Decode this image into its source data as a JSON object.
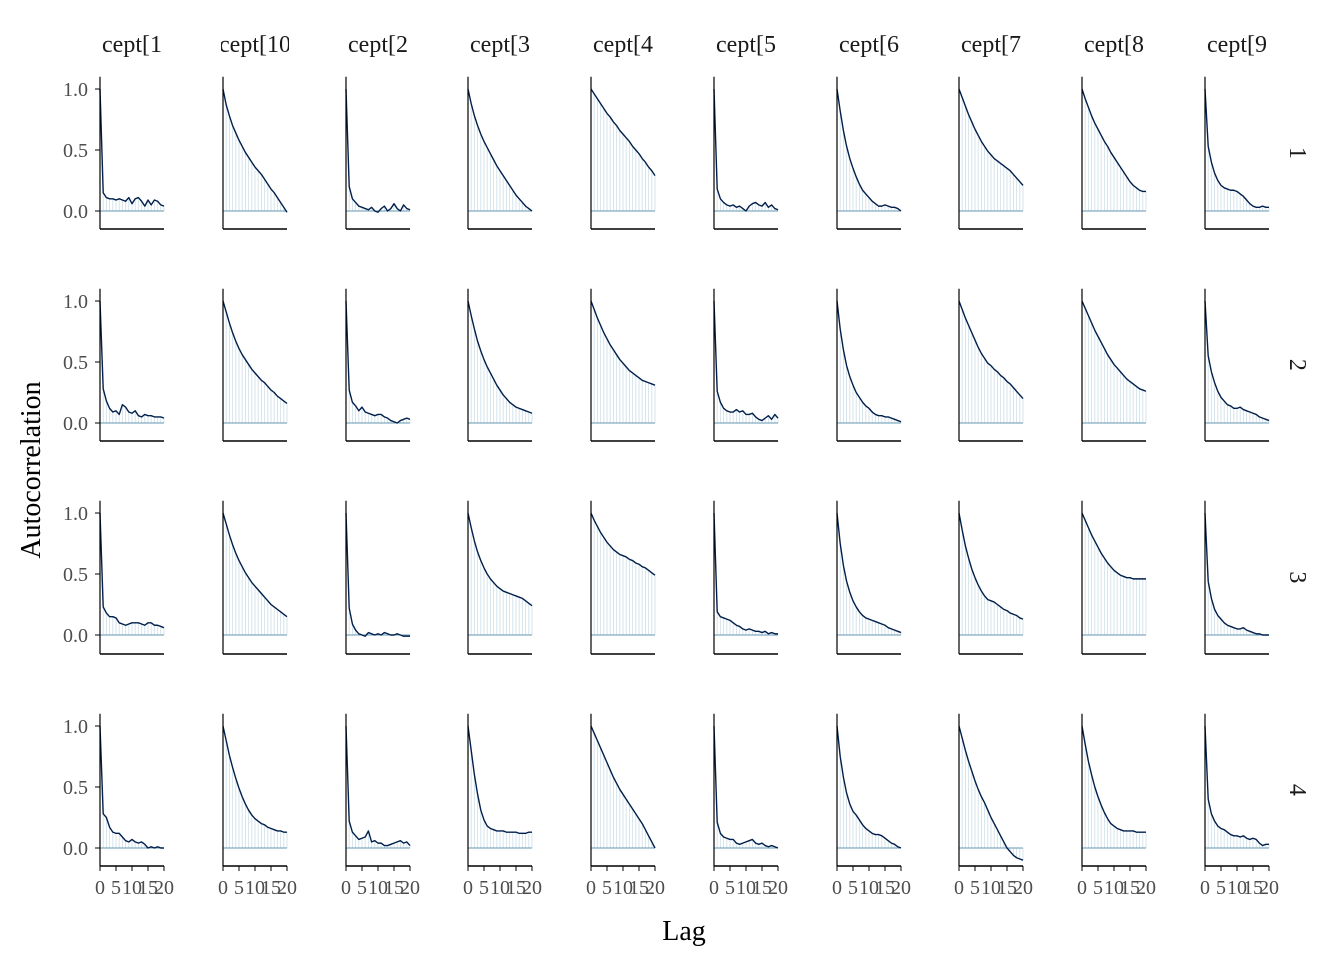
{
  "chart_data": {
    "type": "line",
    "xlabel": "Lag",
    "ylabel": "Autocorrelation",
    "xlim": [
      0,
      20
    ],
    "ylim": [
      -0.15,
      1.1
    ],
    "x_ticks": [
      0,
      5,
      10,
      15,
      20
    ],
    "x_tick_labels": [
      "0",
      "5",
      "10",
      "15",
      "20"
    ],
    "y_ticks": [
      0,
      0.5,
      1
    ],
    "y_tick_labels": [
      "0.0",
      "0.5",
      "1.0"
    ],
    "grid": false,
    "colors": {
      "line": "#011f4b",
      "bars": "#d1e1ec",
      "zero_line": "#6497b1",
      "axis": "#000000"
    },
    "columns": [
      "cept[1",
      "cept[10",
      "cept[2",
      "cept[3",
      "cept[4",
      "cept[5",
      "cept[6",
      "cept[7",
      "cept[8",
      "cept[9"
    ],
    "rows": [
      "1",
      "2",
      "3",
      "4"
    ],
    "x": [
      0,
      1,
      2,
      3,
      4,
      5,
      6,
      7,
      8,
      9,
      10,
      11,
      12,
      13,
      14,
      15,
      16,
      17,
      18,
      19,
      20
    ],
    "panels": [
      [
        [
          1.0,
          0.15,
          0.11,
          0.1,
          0.1,
          0.09,
          0.1,
          0.09,
          0.08,
          0.11,
          0.06,
          0.1,
          0.11,
          0.08,
          0.04,
          0.09,
          0.05,
          0.09,
          0.08,
          0.05,
          0.04
        ],
        [
          1.0,
          0.87,
          0.78,
          0.7,
          0.64,
          0.58,
          0.53,
          0.48,
          0.44,
          0.4,
          0.36,
          0.33,
          0.3,
          0.26,
          0.22,
          0.18,
          0.15,
          0.11,
          0.07,
          0.03,
          -0.01
        ],
        [
          1.0,
          0.2,
          0.1,
          0.07,
          0.04,
          0.03,
          0.02,
          0.01,
          0.03,
          0.0,
          -0.01,
          0.02,
          0.04,
          0.0,
          0.02,
          0.06,
          0.02,
          0.0,
          0.05,
          0.02,
          0.01
        ],
        [
          1.0,
          0.88,
          0.78,
          0.7,
          0.63,
          0.57,
          0.52,
          0.47,
          0.42,
          0.37,
          0.33,
          0.29,
          0.25,
          0.21,
          0.17,
          0.13,
          0.1,
          0.07,
          0.04,
          0.02,
          0.0
        ],
        [
          1.0,
          0.96,
          0.92,
          0.88,
          0.84,
          0.8,
          0.77,
          0.73,
          0.7,
          0.66,
          0.63,
          0.6,
          0.57,
          0.53,
          0.5,
          0.47,
          0.43,
          0.4,
          0.36,
          0.33,
          0.29
        ],
        [
          1.0,
          0.18,
          0.1,
          0.07,
          0.05,
          0.04,
          0.05,
          0.03,
          0.04,
          0.02,
          0.0,
          0.04,
          0.06,
          0.07,
          0.05,
          0.04,
          0.07,
          0.03,
          0.05,
          0.02,
          0.01
        ],
        [
          1.0,
          0.82,
          0.66,
          0.53,
          0.43,
          0.35,
          0.28,
          0.22,
          0.17,
          0.14,
          0.11,
          0.08,
          0.06,
          0.04,
          0.04,
          0.05,
          0.04,
          0.03,
          0.03,
          0.02,
          0.0
        ],
        [
          1.0,
          0.93,
          0.86,
          0.79,
          0.73,
          0.67,
          0.62,
          0.57,
          0.53,
          0.49,
          0.46,
          0.43,
          0.41,
          0.39,
          0.37,
          0.35,
          0.33,
          0.3,
          0.27,
          0.24,
          0.21
        ],
        [
          1.0,
          0.92,
          0.85,
          0.78,
          0.72,
          0.67,
          0.62,
          0.57,
          0.53,
          0.48,
          0.44,
          0.4,
          0.36,
          0.32,
          0.28,
          0.24,
          0.21,
          0.19,
          0.17,
          0.16,
          0.16
        ],
        [
          1.0,
          0.53,
          0.4,
          0.31,
          0.25,
          0.21,
          0.19,
          0.18,
          0.17,
          0.17,
          0.16,
          0.14,
          0.12,
          0.09,
          0.06,
          0.04,
          0.03,
          0.03,
          0.04,
          0.03,
          0.03
        ]
      ],
      [
        [
          1.0,
          0.28,
          0.18,
          0.12,
          0.09,
          0.1,
          0.07,
          0.15,
          0.13,
          0.09,
          0.08,
          0.1,
          0.06,
          0.05,
          0.07,
          0.06,
          0.06,
          0.05,
          0.05,
          0.05,
          0.04
        ],
        [
          1.0,
          0.91,
          0.82,
          0.74,
          0.67,
          0.61,
          0.56,
          0.52,
          0.48,
          0.44,
          0.41,
          0.38,
          0.35,
          0.33,
          0.3,
          0.27,
          0.25,
          0.22,
          0.2,
          0.18,
          0.16
        ],
        [
          1.0,
          0.27,
          0.17,
          0.14,
          0.1,
          0.13,
          0.09,
          0.08,
          0.07,
          0.06,
          0.07,
          0.07,
          0.05,
          0.04,
          0.02,
          0.01,
          0.0,
          0.02,
          0.03,
          0.04,
          0.03
        ],
        [
          1.0,
          0.88,
          0.77,
          0.67,
          0.59,
          0.52,
          0.46,
          0.41,
          0.36,
          0.31,
          0.27,
          0.23,
          0.2,
          0.17,
          0.15,
          0.13,
          0.12,
          0.11,
          0.1,
          0.09,
          0.08
        ],
        [
          1.0,
          0.93,
          0.86,
          0.8,
          0.74,
          0.69,
          0.64,
          0.6,
          0.56,
          0.52,
          0.49,
          0.46,
          0.43,
          0.41,
          0.39,
          0.37,
          0.35,
          0.34,
          0.33,
          0.32,
          0.31
        ],
        [
          1.0,
          0.26,
          0.17,
          0.12,
          0.1,
          0.09,
          0.09,
          0.11,
          0.09,
          0.1,
          0.07,
          0.07,
          0.08,
          0.05,
          0.03,
          0.02,
          0.04,
          0.06,
          0.03,
          0.07,
          0.04
        ],
        [
          1.0,
          0.77,
          0.6,
          0.47,
          0.38,
          0.31,
          0.25,
          0.21,
          0.17,
          0.14,
          0.12,
          0.09,
          0.07,
          0.06,
          0.06,
          0.05,
          0.05,
          0.04,
          0.03,
          0.02,
          0.01
        ],
        [
          1.0,
          0.93,
          0.86,
          0.8,
          0.74,
          0.68,
          0.62,
          0.57,
          0.53,
          0.49,
          0.47,
          0.44,
          0.42,
          0.39,
          0.37,
          0.34,
          0.32,
          0.29,
          0.26,
          0.23,
          0.2
        ],
        [
          1.0,
          0.94,
          0.88,
          0.82,
          0.76,
          0.71,
          0.66,
          0.61,
          0.56,
          0.52,
          0.48,
          0.45,
          0.42,
          0.39,
          0.36,
          0.34,
          0.32,
          0.3,
          0.28,
          0.27,
          0.26
        ],
        [
          1.0,
          0.55,
          0.42,
          0.33,
          0.26,
          0.21,
          0.18,
          0.15,
          0.14,
          0.12,
          0.12,
          0.13,
          0.11,
          0.1,
          0.09,
          0.08,
          0.07,
          0.05,
          0.04,
          0.03,
          0.02
        ]
      ],
      [
        [
          1.0,
          0.23,
          0.18,
          0.15,
          0.15,
          0.14,
          0.1,
          0.09,
          0.08,
          0.09,
          0.1,
          0.1,
          0.1,
          0.09,
          0.08,
          0.1,
          0.1,
          0.08,
          0.08,
          0.07,
          0.06
        ],
        [
          1.0,
          0.91,
          0.82,
          0.74,
          0.67,
          0.61,
          0.56,
          0.51,
          0.47,
          0.43,
          0.4,
          0.37,
          0.34,
          0.31,
          0.28,
          0.25,
          0.23,
          0.21,
          0.19,
          0.17,
          0.15
        ],
        [
          1.0,
          0.22,
          0.09,
          0.04,
          0.01,
          0.0,
          -0.01,
          0.02,
          0.01,
          0.0,
          0.01,
          0.0,
          0.02,
          0.01,
          0.0,
          0.0,
          0.01,
          0.0,
          -0.01,
          -0.01,
          -0.01
        ],
        [
          1.0,
          0.88,
          0.77,
          0.68,
          0.61,
          0.55,
          0.5,
          0.46,
          0.43,
          0.4,
          0.38,
          0.36,
          0.35,
          0.34,
          0.33,
          0.32,
          0.31,
          0.3,
          0.28,
          0.26,
          0.24
        ],
        [
          1.0,
          0.94,
          0.89,
          0.84,
          0.8,
          0.76,
          0.73,
          0.7,
          0.68,
          0.66,
          0.65,
          0.64,
          0.62,
          0.61,
          0.59,
          0.58,
          0.56,
          0.55,
          0.53,
          0.51,
          0.49
        ],
        [
          1.0,
          0.19,
          0.15,
          0.14,
          0.13,
          0.12,
          0.1,
          0.08,
          0.07,
          0.05,
          0.04,
          0.05,
          0.04,
          0.03,
          0.03,
          0.02,
          0.03,
          0.01,
          0.02,
          0.01,
          0.01
        ],
        [
          1.0,
          0.75,
          0.57,
          0.44,
          0.35,
          0.28,
          0.23,
          0.19,
          0.16,
          0.14,
          0.13,
          0.12,
          0.11,
          0.1,
          0.09,
          0.08,
          0.06,
          0.05,
          0.04,
          0.03,
          0.02
        ],
        [
          1.0,
          0.86,
          0.73,
          0.63,
          0.54,
          0.47,
          0.41,
          0.36,
          0.32,
          0.29,
          0.28,
          0.27,
          0.25,
          0.23,
          0.21,
          0.2,
          0.18,
          0.17,
          0.16,
          0.14,
          0.13
        ],
        [
          1.0,
          0.94,
          0.88,
          0.82,
          0.77,
          0.72,
          0.67,
          0.63,
          0.59,
          0.56,
          0.53,
          0.51,
          0.49,
          0.48,
          0.47,
          0.47,
          0.46,
          0.46,
          0.46,
          0.46,
          0.46
        ],
        [
          1.0,
          0.44,
          0.3,
          0.21,
          0.16,
          0.13,
          0.1,
          0.08,
          0.07,
          0.06,
          0.05,
          0.05,
          0.06,
          0.04,
          0.03,
          0.02,
          0.01,
          0.01,
          0.0,
          0.0,
          0.0
        ]
      ],
      [
        [
          1.0,
          0.28,
          0.25,
          0.17,
          0.13,
          0.12,
          0.12,
          0.09,
          0.06,
          0.05,
          0.07,
          0.05,
          0.04,
          0.05,
          0.03,
          0.0,
          0.01,
          0.0,
          0.01,
          0.0,
          0.0
        ],
        [
          1.0,
          0.88,
          0.76,
          0.66,
          0.57,
          0.49,
          0.42,
          0.36,
          0.31,
          0.27,
          0.24,
          0.22,
          0.2,
          0.19,
          0.17,
          0.16,
          0.15,
          0.14,
          0.14,
          0.13,
          0.13
        ],
        [
          1.0,
          0.22,
          0.13,
          0.1,
          0.07,
          0.08,
          0.09,
          0.14,
          0.05,
          0.06,
          0.04,
          0.04,
          0.02,
          0.02,
          0.03,
          0.04,
          0.05,
          0.06,
          0.04,
          0.05,
          0.02
        ],
        [
          1.0,
          0.8,
          0.6,
          0.44,
          0.31,
          0.23,
          0.18,
          0.16,
          0.15,
          0.14,
          0.14,
          0.14,
          0.13,
          0.13,
          0.13,
          0.13,
          0.12,
          0.12,
          0.12,
          0.13,
          0.13
        ],
        [
          1.0,
          0.94,
          0.88,
          0.82,
          0.76,
          0.7,
          0.64,
          0.58,
          0.53,
          0.48,
          0.44,
          0.4,
          0.36,
          0.32,
          0.28,
          0.24,
          0.2,
          0.15,
          0.1,
          0.05,
          0.0
        ],
        [
          1.0,
          0.21,
          0.12,
          0.09,
          0.08,
          0.07,
          0.07,
          0.04,
          0.03,
          0.04,
          0.05,
          0.06,
          0.07,
          0.04,
          0.03,
          0.04,
          0.02,
          0.01,
          0.02,
          0.01,
          0.0
        ],
        [
          1.0,
          0.75,
          0.58,
          0.45,
          0.36,
          0.3,
          0.27,
          0.23,
          0.19,
          0.16,
          0.14,
          0.12,
          0.11,
          0.11,
          0.1,
          0.08,
          0.06,
          0.04,
          0.03,
          0.01,
          0.0
        ],
        [
          1.0,
          0.9,
          0.8,
          0.71,
          0.63,
          0.55,
          0.48,
          0.42,
          0.37,
          0.31,
          0.25,
          0.2,
          0.15,
          0.1,
          0.05,
          0.0,
          -0.03,
          -0.06,
          -0.08,
          -0.09,
          -0.1
        ],
        [
          1.0,
          0.85,
          0.71,
          0.6,
          0.5,
          0.42,
          0.35,
          0.29,
          0.24,
          0.2,
          0.18,
          0.16,
          0.15,
          0.14,
          0.14,
          0.14,
          0.14,
          0.13,
          0.13,
          0.13,
          0.13
        ],
        [
          1.0,
          0.4,
          0.28,
          0.22,
          0.18,
          0.16,
          0.15,
          0.13,
          0.11,
          0.1,
          0.1,
          0.09,
          0.1,
          0.08,
          0.07,
          0.08,
          0.07,
          0.04,
          0.02,
          0.03,
          0.03
        ]
      ]
    ]
  }
}
